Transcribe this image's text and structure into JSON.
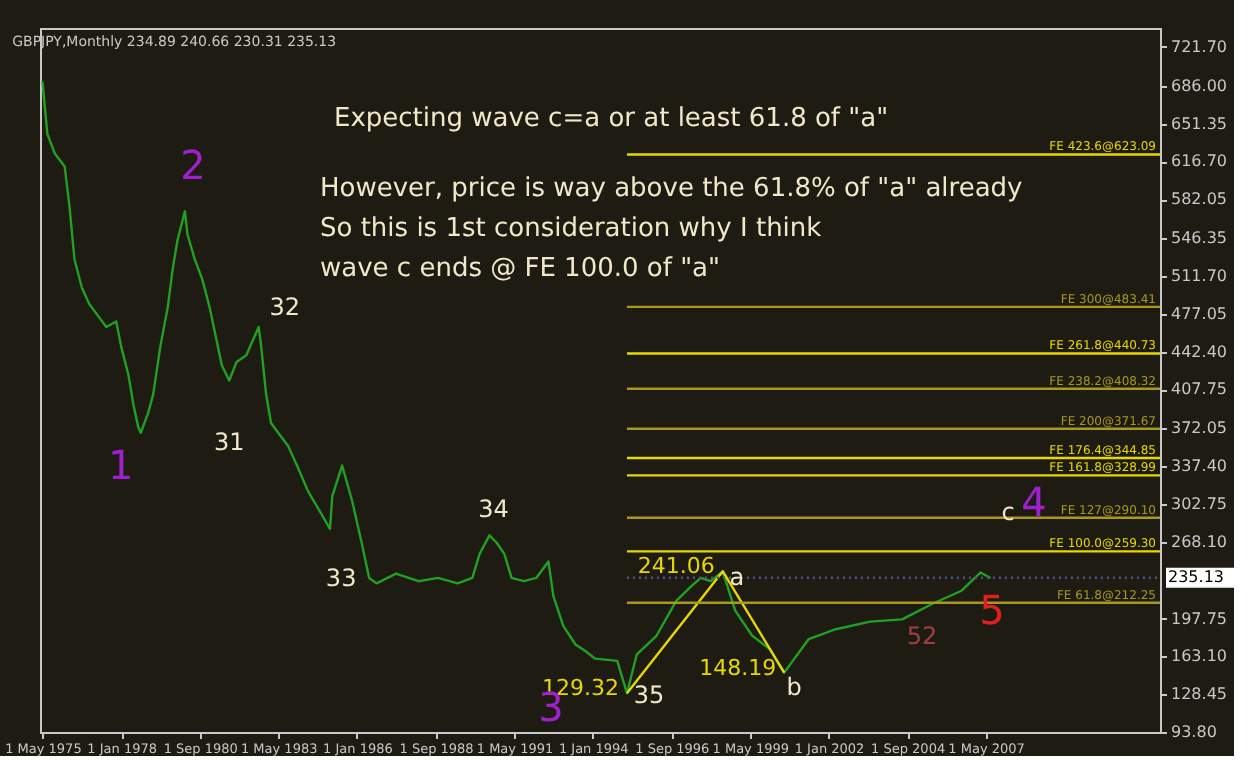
{
  "chart_data": {
    "type": "line",
    "title": "GBPJPY,Monthly  234.89 240.66 230.31 235.13",
    "xlim": [
      "1975-04",
      "2013-04"
    ],
    "xticks": [
      {
        "value": "1975-05",
        "label": "1 May 1975"
      },
      {
        "value": "1978-01",
        "label": "1 Jan 1978"
      },
      {
        "value": "1980-09",
        "label": "1 Sep 1980"
      },
      {
        "value": "1983-05",
        "label": "1 May 1983"
      },
      {
        "value": "1986-01",
        "label": "1 Jan 1986"
      },
      {
        "value": "1988-09",
        "label": "1 Sep 1988"
      },
      {
        "value": "1991-05",
        "label": "1 May 1991"
      },
      {
        "value": "1994-01",
        "label": "1 Jan 1994"
      },
      {
        "value": "1996-09",
        "label": "1 Sep 1996"
      },
      {
        "value": "1999-05",
        "label": "1 May 1999"
      },
      {
        "value": "2002-01",
        "label": "1 Jan 2002"
      },
      {
        "value": "2004-09",
        "label": "1 Sep 2004"
      },
      {
        "value": "2007-05",
        "label": "1 May 2007"
      }
    ],
    "ylim": [
      93.8,
      739
    ],
    "yticks": [
      {
        "value": 93.8,
        "label": "93.80"
      },
      {
        "value": 128.45,
        "label": "128.45"
      },
      {
        "value": 163.1,
        "label": "163.10"
      },
      {
        "value": 197.75,
        "label": "197.75"
      },
      {
        "value": 268.1,
        "label": "268.10"
      },
      {
        "value": 302.75,
        "label": "302.75"
      },
      {
        "value": 337.4,
        "label": "337.40"
      },
      {
        "value": 372.05,
        "label": "372.05"
      },
      {
        "value": 407.75,
        "label": "407.75"
      },
      {
        "value": 442.4,
        "label": "442.40"
      },
      {
        "value": 477.05,
        "label": "477.05"
      },
      {
        "value": 511.7,
        "label": "511.70"
      },
      {
        "value": 546.35,
        "label": "546.35"
      },
      {
        "value": 582.05,
        "label": "582.05"
      },
      {
        "value": 616.7,
        "label": "616.70"
      },
      {
        "value": 651.35,
        "label": "651.35"
      },
      {
        "value": 686,
        "label": "686.00"
      },
      {
        "value": 721.7,
        "label": "721.70"
      }
    ],
    "series": [
      {
        "color": "#22a022",
        "x": [
          "1975-05",
          "1975-07",
          "1975-10",
          "1976-02",
          "1976-04",
          "1976-06",
          "1976-09",
          "1976-12",
          "1977-04",
          "1977-07",
          "1977-11",
          "1978-01",
          "1978-04",
          "1978-06",
          "1978-08",
          "1978-09",
          "1978-12",
          "1979-02",
          "1979-05",
          "1979-08",
          "1979-10",
          "1979-12",
          "1980-03",
          "1980-04",
          "1980-07",
          "1980-10",
          "1981-01",
          "1981-06",
          "1981-09",
          "1981-12",
          "1982-04",
          "1982-09",
          "1982-10",
          "1982-12",
          "1983-02",
          "1983-05",
          "1983-09",
          "1984-01",
          "1984-05",
          "1985-02",
          "1985-03",
          "1985-07",
          "1985-11",
          "1986-03",
          "1986-06",
          "1986-09",
          "1987-05",
          "1988-02",
          "1988-10",
          "1989-06",
          "1989-12",
          "1990-03",
          "1990-07",
          "1990-10",
          "1991-01",
          "1991-04",
          "1991-09",
          "1992-02",
          "1992-07",
          "1992-09",
          "1993-01",
          "1993-06",
          "1993-10",
          "1994-02",
          "1994-11",
          "1995-03",
          "1995-07",
          "1996-03",
          "1996-11",
          "1997-05",
          "1997-09",
          "1998-01",
          "1998-06",
          "1998-11",
          "1999-06",
          "2000-01",
          "2000-07",
          "2001-05",
          "2002-04",
          "2003-06",
          "2004-07",
          "2005-08",
          "2006-07",
          "2007-03",
          "2007-07"
        ],
        "values": [
          690,
          642,
          624,
          612,
          575,
          527,
          501,
          486,
          474,
          465,
          470,
          447,
          421,
          394,
          373,
          368,
          386,
          403,
          447,
          483,
          518,
          545,
          571,
          550,
          527,
          509,
          483,
          430,
          416,
          433,
          439,
          465,
          448,
          404,
          377,
          368,
          356,
          336,
          315,
          280,
          310,
          338,
          306,
          267,
          235,
          230,
          239,
          232,
          235,
          230,
          235,
          257,
          274,
          267,
          257,
          235,
          232,
          235,
          250,
          218,
          191,
          174,
          168,
          161,
          159,
          129.32,
          165,
          182,
          214,
          227,
          235,
          232,
          241.06,
          205,
          182,
          170,
          148.19,
          179,
          188,
          195,
          197,
          212,
          223,
          240,
          235
        ]
      },
      {
        "color": "#e8d800",
        "x": [
          "1995-03",
          "1998-06",
          "2000-07"
        ],
        "values": [
          129.32,
          241.06,
          148.19
        ],
        "value_labels": [
          "129.32",
          "241.06",
          "148.19"
        ]
      }
    ],
    "ref_lines": [
      {
        "axis": "y",
        "value": 623.09,
        "label": "FE 423.6@623.09",
        "color": "#e8d800"
      },
      {
        "axis": "y",
        "value": 483.41,
        "label": "FE 300@483.41",
        "color": "#a89820"
      },
      {
        "axis": "y",
        "value": 440.73,
        "label": "FE 261.8@440.73",
        "color": "#e8d800"
      },
      {
        "axis": "y",
        "value": 408.32,
        "label": "FE 238.2@408.32",
        "color": "#a89820"
      },
      {
        "axis": "y",
        "value": 371.67,
        "label": "FE 200@371.67",
        "color": "#a89820"
      },
      {
        "axis": "y",
        "value": 344.85,
        "label": "FE 176.4@344.85",
        "color": "#e8d800"
      },
      {
        "axis": "y",
        "value": 328.99,
        "label": "FE 161.8@328.99",
        "color": "#e8d800"
      },
      {
        "axis": "y",
        "value": 290.1,
        "label": "FE 127@290.10",
        "color": "#a89820"
      },
      {
        "axis": "y",
        "value": 259.3,
        "label": "FE 100.0@259.30",
        "color": "#e8d800"
      },
      {
        "axis": "y",
        "value": 212.25,
        "label": "FE 61.8@212.25",
        "color": "#a89820"
      },
      {
        "axis": "y",
        "value": 235.13,
        "label": "235.13",
        "color": "#50508a",
        "line_style": "dotted"
      }
    ],
    "annotations": [
      "Expecting wave c=a or at least 61.8 of \"a\"",
      "However,  price is way above the 61.8% of \"a\" already",
      "So this is 1st consideration why I think",
      "wave c ends @ FE 100.0 of \"a\"",
      "4",
      "c",
      "52",
      "5",
      {
        "text": "1",
        "x": "1978-09",
        "y": 368
      },
      {
        "text": "2",
        "x": "1980-03",
        "y": 571
      },
      {
        "text": "3",
        "x": "1995-03",
        "y": 129.32
      },
      {
        "text": "31",
        "x": "1981-09",
        "y": 416
      },
      {
        "text": "32",
        "x": "1982-09",
        "y": 465
      },
      {
        "text": "33",
        "x": "1986-06",
        "y": 235
      },
      {
        "text": "34",
        "x": "1990-07",
        "y": 274
      },
      {
        "text": "35",
        "x": "1995-03",
        "y": 129.32
      },
      {
        "text": "a",
        "x": "1998-06",
        "y": 241.06
      },
      {
        "text": "b",
        "x": "2000-07",
        "y": 148.19
      }
    ]
  }
}
